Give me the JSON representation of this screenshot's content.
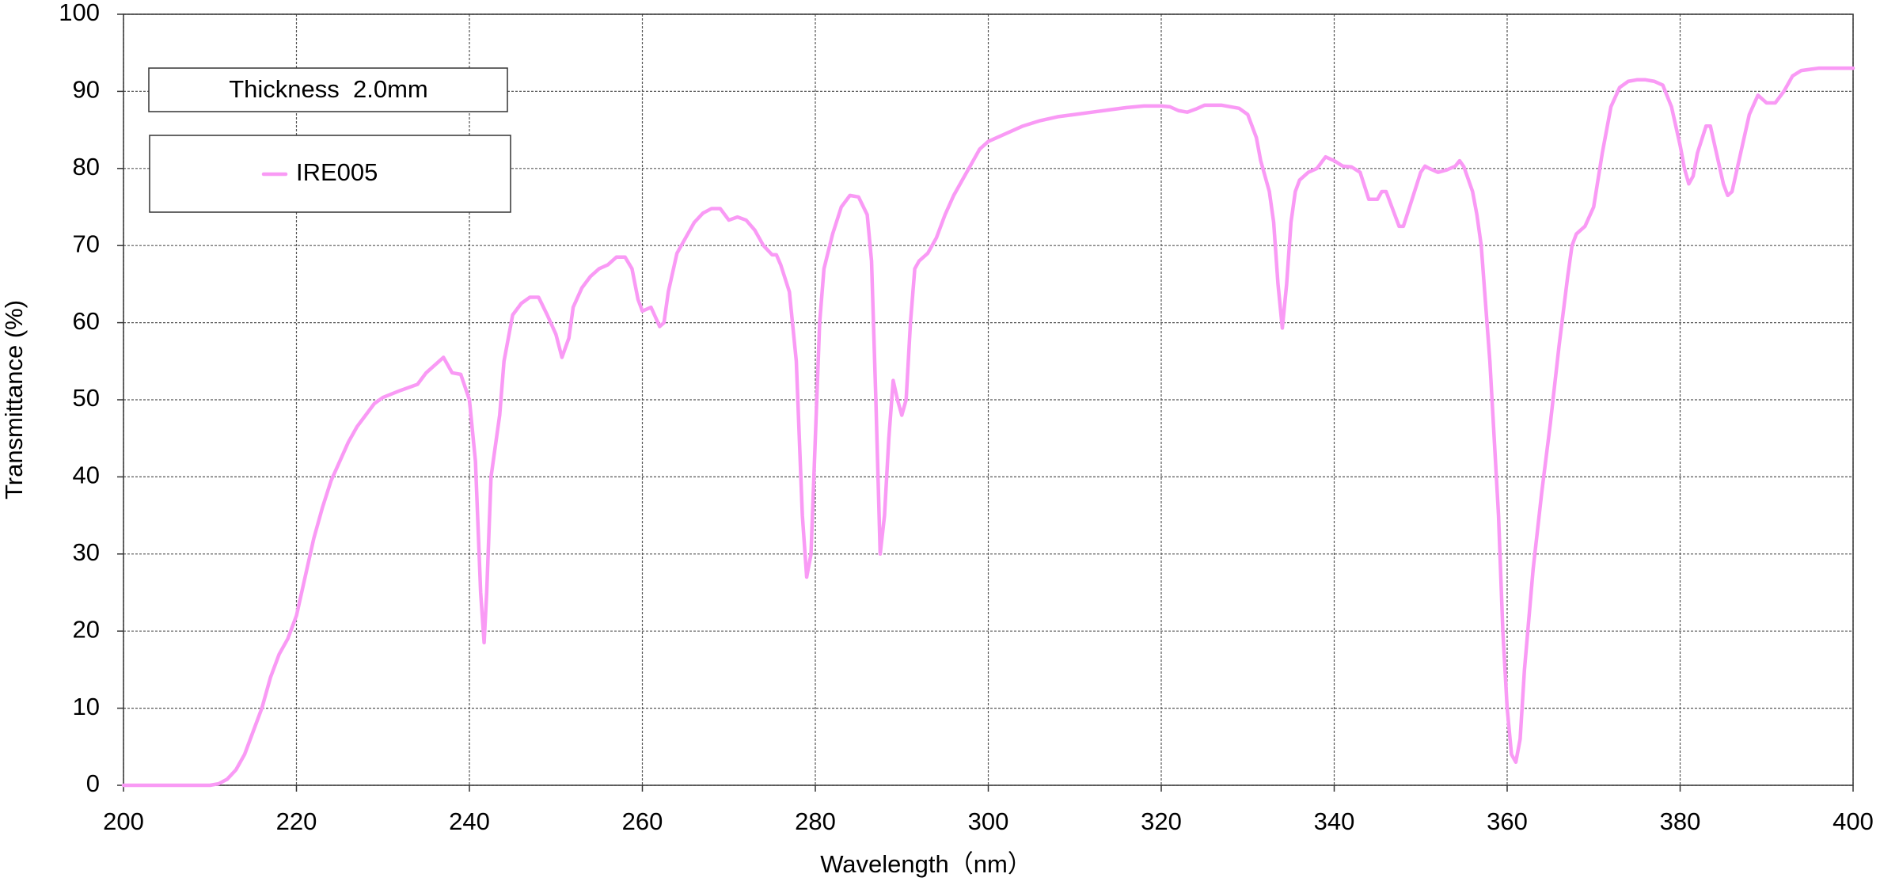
{
  "chart_data": {
    "type": "line",
    "annotation": "Thickness  2.0mm",
    "xlabel": "Wavelength（nm）",
    "ylabel": "Transmittance (%)",
    "xlim": [
      200,
      400
    ],
    "ylim": [
      0,
      100
    ],
    "xticks": [
      200,
      220,
      240,
      260,
      280,
      300,
      320,
      340,
      360,
      380,
      400
    ],
    "yticks": [
      0,
      10,
      20,
      30,
      40,
      50,
      60,
      70,
      80,
      90,
      100
    ],
    "grid": true,
    "legend": "upper left",
    "x": [
      200,
      205,
      210,
      211,
      212,
      213,
      214,
      215,
      216,
      217,
      218,
      219,
      220,
      221,
      222,
      223,
      224,
      225,
      226,
      227,
      228,
      229,
      230,
      232,
      234,
      235,
      236,
      237,
      238,
      239,
      240,
      240.7,
      241.3,
      241.7,
      242,
      242.5,
      243.5,
      244,
      245,
      246,
      247,
      248,
      249,
      250,
      250.7,
      251.5,
      252,
      253,
      254,
      255,
      256,
      257,
      258,
      258.8,
      259.5,
      260,
      261,
      262,
      262.5,
      263,
      264,
      265,
      266,
      267,
      268,
      269,
      270,
      271,
      272,
      273,
      274,
      275,
      275.5,
      276,
      277,
      277.8,
      278.5,
      279,
      279.5,
      280,
      280.5,
      281,
      282,
      283,
      284,
      285,
      286,
      286.5,
      287,
      287.5,
      288,
      288.5,
      289,
      289.5,
      290,
      290.5,
      291,
      291.5,
      292,
      293,
      294,
      295,
      296,
      297,
      298,
      299,
      300,
      302,
      304,
      306,
      308,
      310,
      312,
      314,
      316,
      318,
      320,
      321,
      322,
      323,
      324,
      325,
      327,
      329,
      330,
      331,
      331.5,
      332.5,
      333,
      333.5,
      334,
      334.5,
      335,
      335.5,
      336,
      337,
      338,
      339,
      340,
      341,
      342,
      343,
      344,
      345,
      345.5,
      346,
      347,
      347.5,
      348,
      349,
      350,
      350.5,
      351,
      352,
      353,
      354,
      354.5,
      355,
      356,
      356.5,
      357,
      358,
      359,
      359.5,
      360,
      360.5,
      361,
      361.5,
      362,
      363,
      364,
      365,
      366,
      367,
      367.5,
      368,
      369,
      370,
      371,
      372,
      373,
      374,
      375,
      376,
      377,
      378,
      379,
      380,
      380.5,
      381,
      381.5,
      382,
      383,
      383.5,
      384,
      385,
      385.5,
      386,
      387,
      388,
      389,
      390,
      391,
      392,
      393,
      394,
      396,
      400
    ],
    "series": [
      {
        "name": "IRE005",
        "color": "#f99af5",
        "values": [
          0,
          0,
          0,
          0.2,
          0.8,
          2,
          4,
          7,
          10,
          14,
          17,
          19,
          22,
          27,
          32,
          36,
          39.5,
          42,
          44.5,
          46.5,
          48,
          49.5,
          50.3,
          51.2,
          52,
          53.5,
          54.5,
          55.5,
          53.5,
          53.3,
          50,
          42,
          25,
          18.5,
          25,
          40,
          48,
          55,
          61,
          62.5,
          63.3,
          63.3,
          61,
          58.5,
          55.5,
          58,
          62,
          64.5,
          66,
          67,
          67.5,
          68.5,
          68.5,
          67,
          63,
          61.5,
          62,
          59.5,
          60,
          64,
          69,
          71,
          73,
          74.2,
          74.8,
          74.8,
          73.3,
          73.7,
          73.3,
          72,
          70,
          68.8,
          68.8,
          67.5,
          64,
          55,
          35,
          27,
          30,
          45,
          60,
          67,
          71.5,
          75,
          76.5,
          76.3,
          74,
          68,
          50,
          30,
          35,
          45,
          52.5,
          50,
          48,
          50,
          60,
          67,
          68,
          69,
          71,
          74,
          76.5,
          78.5,
          80.5,
          82.5,
          83.5,
          84.5,
          85.5,
          86.2,
          86.7,
          87,
          87.3,
          87.6,
          87.9,
          88.1,
          88.1,
          88,
          87.5,
          87.3,
          87.7,
          88.2,
          88.2,
          87.8,
          87,
          84,
          81,
          77,
          73,
          65,
          59.3,
          65,
          73,
          77,
          78.5,
          79.5,
          80,
          81.5,
          81,
          80.3,
          80.2,
          79.5,
          76,
          76,
          77,
          77,
          74,
          72.5,
          72.5,
          76,
          79.5,
          80.3,
          80,
          79.5,
          79.8,
          80.3,
          81,
          80.2,
          77,
          74,
          70,
          55,
          35,
          20,
          10,
          4,
          3,
          6,
          15,
          28,
          38,
          47,
          57,
          66,
          70,
          71.5,
          72.5,
          75,
          82,
          88,
          90.5,
          91.3,
          91.5,
          91.5,
          91.3,
          90.8,
          88,
          83,
          80,
          78,
          79,
          82,
          85.5,
          85.5,
          83,
          78,
          76.5,
          77,
          82,
          87,
          89.5,
          88.5,
          88.5,
          90,
          92,
          92.7,
          93,
          93
        ]
      }
    ]
  }
}
